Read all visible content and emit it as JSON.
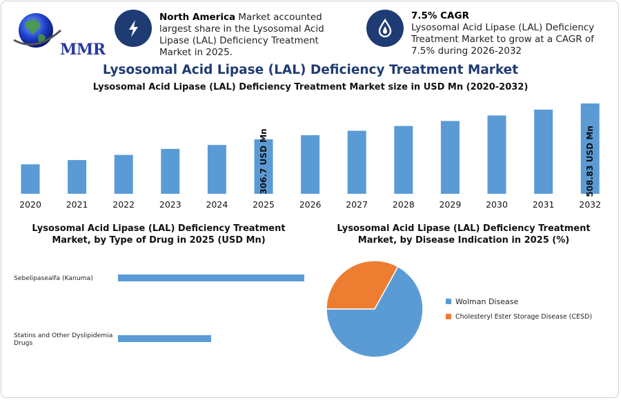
{
  "logo": {
    "text": "MMR"
  },
  "info_cards": [
    {
      "icon": "lightning-icon",
      "bold": "North America",
      "text": " Market accounted largest share in the Lysosomal Acid Lipase (LAL) Deficiency Treatment Market in 2025."
    },
    {
      "icon": "drop-icon",
      "bold": "7.5% CAGR",
      "text": "Lysosomal Acid Lipase (LAL) Deficiency Treatment Market to grow at a CAGR of 7.5% during 2026-2032"
    }
  ],
  "main_title": "Lysosomal Acid Lipase (LAL) Deficiency Treatment Market",
  "colors": {
    "blue": "#5b9bd5",
    "orange": "#ed7d31",
    "navy": "#1f3b73"
  },
  "chart_data": [
    {
      "type": "bar",
      "title": "Lysosomal Acid Lipase (LAL) Deficiency Treatment Market size in USD Mn (2020-2032)",
      "categories": [
        "2020",
        "2021",
        "2022",
        "2023",
        "2024",
        "2025",
        "2026",
        "2027",
        "2028",
        "2029",
        "2030",
        "2031",
        "2032"
      ],
      "values": [
        166,
        190,
        219,
        253,
        275,
        306.7,
        330,
        355,
        382,
        410,
        441,
        474,
        508.83
      ],
      "annotations": [
        {
          "category": "2025",
          "label": "306.7 USD Mn"
        },
        {
          "category": "2032",
          "label": "508.83 USD Mn"
        }
      ],
      "ylim": [
        0,
        508.83
      ]
    },
    {
      "type": "bar",
      "orientation": "horizontal",
      "title": "Lysosomal Acid Lipase (LAL) Deficiency Treatment Market, by Type of Drug in 2025 (USD Mn)",
      "categories": [
        "Sebelipasealfa (Kanuma)",
        "Statins and Other Dyslipidemia Drugs"
      ],
      "values": [
        100,
        50
      ]
    },
    {
      "type": "pie",
      "title": "Lysosomal Acid Lipase (LAL) Deficiency Treatment Market, by Disease Indication in 2025 (%)",
      "labels": [
        "Wolman Disease",
        "Cholesteryl Ester Storage Disease (CESD)"
      ],
      "values": [
        67,
        33
      ],
      "legend": "right"
    }
  ]
}
